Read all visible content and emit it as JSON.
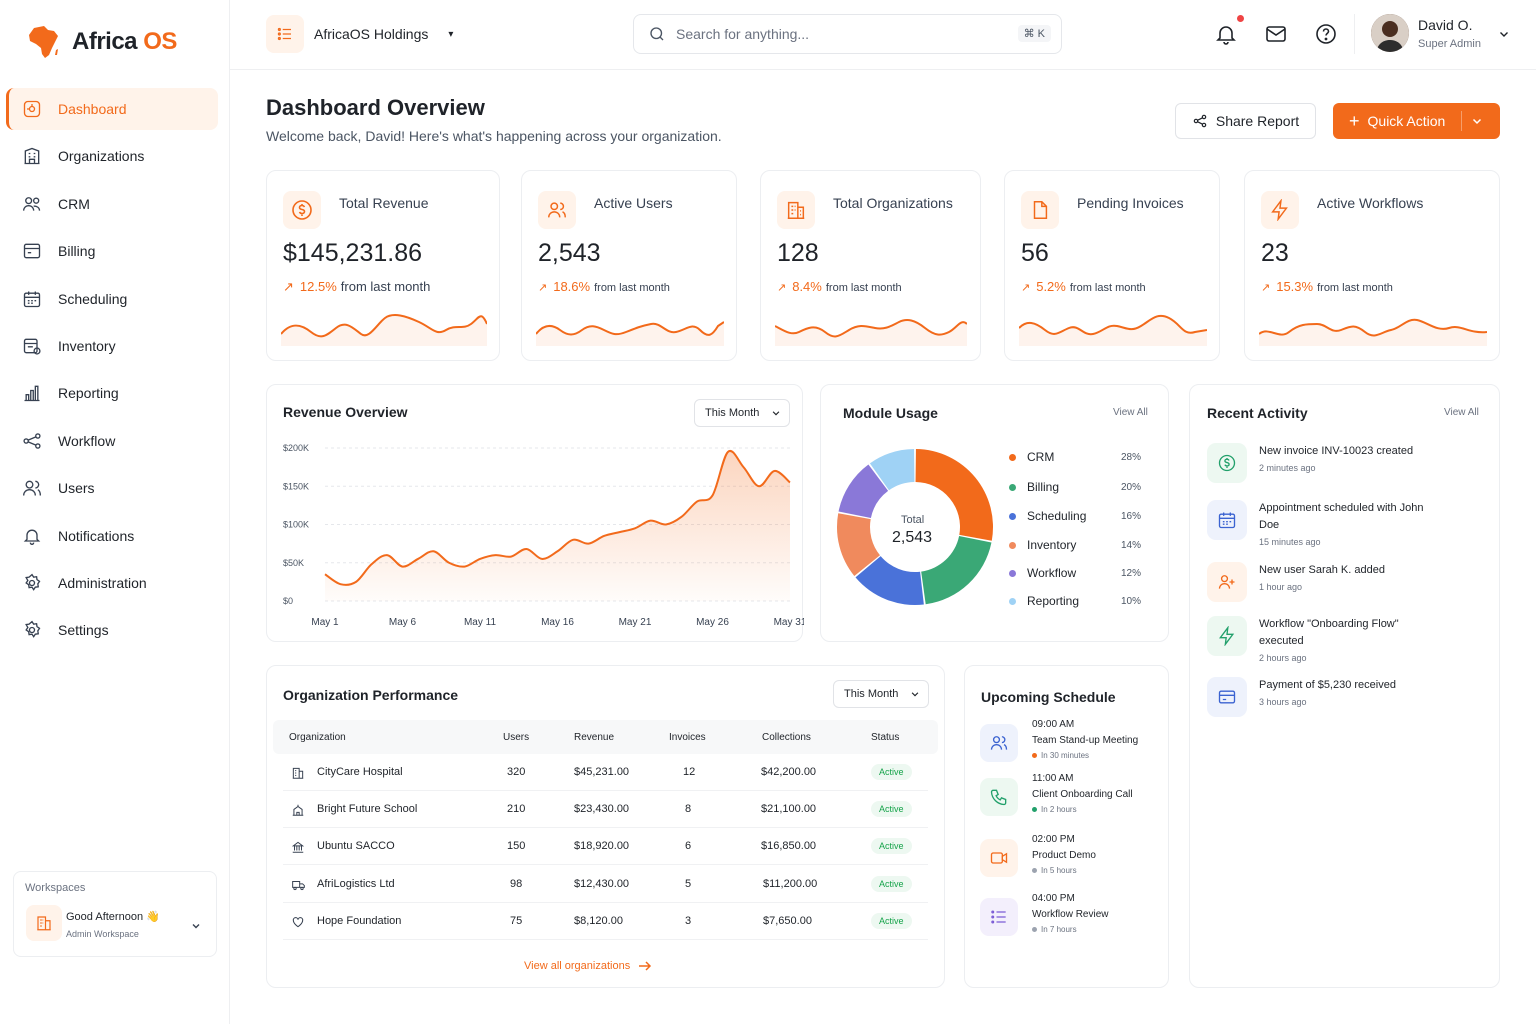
{
  "brand": {
    "name_part1": "Africa",
    "name_part2": "OS",
    "accent": "#f26a1b"
  },
  "sidebar": {
    "items": [
      {
        "label": "Dashboard",
        "icon": "dashboard-icon"
      },
      {
        "label": "Organizations",
        "icon": "building-icon"
      },
      {
        "label": "CRM",
        "icon": "users-icon"
      },
      {
        "label": "Billing",
        "icon": "billing-icon"
      },
      {
        "label": "Scheduling",
        "icon": "calendar-icon"
      },
      {
        "label": "Inventory",
        "icon": "inventory-icon"
      },
      {
        "label": "Reporting",
        "icon": "chart-icon"
      },
      {
        "label": "Workflow",
        "icon": "workflow-icon"
      },
      {
        "label": "Users",
        "icon": "users-icon"
      },
      {
        "label": "Notifications",
        "icon": "bell-icon"
      },
      {
        "label": "Administration",
        "icon": "gear-icon"
      },
      {
        "label": "Settings",
        "icon": "gear-icon"
      }
    ],
    "workspace": {
      "label": "Workspaces",
      "greeting": "Good Afternoon 👋",
      "name": "Admin Workspace"
    }
  },
  "topbar": {
    "org_name": "AfricaOS Holdings",
    "search_placeholder": "Search for anything...",
    "search_shortcut": "⌘ K",
    "user_name": "David O.",
    "user_role": "Super Admin"
  },
  "header": {
    "title": "Dashboard Overview",
    "subtitle": "Welcome back, David! Here's what's happening across your organization.",
    "share_label": "Share Report",
    "quick_label": "Quick Action"
  },
  "kpis": [
    {
      "label": "Total Revenue",
      "value": "$145,231.86",
      "change": "12.5%",
      "suffix": "from last month",
      "icon": "dollar-icon"
    },
    {
      "label": "Active Users",
      "value": "2,543",
      "change": "18.6%",
      "suffix": "from last month",
      "icon": "users-icon"
    },
    {
      "label": "Total Organizations",
      "value": "128",
      "change": "8.4%",
      "suffix": "from last month",
      "icon": "building-icon"
    },
    {
      "label": "Pending Invoices",
      "value": "56",
      "change": "5.2%",
      "suffix": "from last month",
      "icon": "document-icon"
    },
    {
      "label": "Active Workflows",
      "value": "23",
      "change": "15.3%",
      "suffix": "from last month",
      "icon": "lightning-icon"
    }
  ],
  "revenue": {
    "title": "Revenue Overview",
    "period": "This Month"
  },
  "module_usage": {
    "title": "Module Usage",
    "view_all": "View All",
    "total_label": "Total",
    "total_value": "2,543"
  },
  "activity": {
    "title": "Recent Activity",
    "view_all": "View All",
    "items": [
      {
        "text": "New invoice INV-10023 created",
        "time": "2 minutes ago",
        "icon": "dollar-icon"
      },
      {
        "text": "Appointment scheduled with John Doe",
        "time": "15 minutes ago",
        "icon": "calendar-icon"
      },
      {
        "text": "New user Sarah K. added",
        "time": "1 hour ago",
        "icon": "user-add-icon"
      },
      {
        "text": "Workflow \"Onboarding Flow\" executed",
        "time": "2 hours ago",
        "icon": "lightning-icon"
      },
      {
        "text": "Payment of $5,230 received",
        "time": "3 hours ago",
        "icon": "card-icon"
      }
    ]
  },
  "org_perf": {
    "title": "Organization Performance",
    "period": "This Month",
    "columns": [
      "Organization",
      "Users",
      "Revenue",
      "Invoices",
      "Collections",
      "Status"
    ],
    "rows": [
      {
        "name": "CityCare Hospital",
        "users": "320",
        "revenue": "$45,231.00",
        "invoices": "12",
        "collections": "$42,200.00",
        "status": "Active",
        "icon": "building-icon"
      },
      {
        "name": "Bright Future School",
        "users": "210",
        "revenue": "$23,430.00",
        "invoices": "8",
        "collections": "$21,100.00",
        "status": "Active",
        "icon": "school-icon"
      },
      {
        "name": "Ubuntu SACCO",
        "users": "150",
        "revenue": "$18,920.00",
        "invoices": "6",
        "collections": "$16,850.00",
        "status": "Active",
        "icon": "bank-icon"
      },
      {
        "name": "AfriLogistics Ltd",
        "users": "98",
        "revenue": "$12,430.00",
        "invoices": "5",
        "collections": "$11,200.00",
        "status": "Active",
        "icon": "truck-icon"
      },
      {
        "name": "Hope Foundation",
        "users": "75",
        "revenue": "$8,120.00",
        "invoices": "3",
        "collections": "$7,650.00",
        "status": "Active",
        "icon": "heart-icon"
      }
    ],
    "view_all": "View all organizations"
  },
  "schedule": {
    "title": "Upcoming Schedule",
    "items": [
      {
        "time": "09:00 AM",
        "title": "Team Stand-up Meeting",
        "in": "In 30 minutes",
        "icon": "users-icon",
        "dot": "#f26a1b"
      },
      {
        "time": "11:00 AM",
        "title": "Client Onboarding Call",
        "in": "In 2 hours",
        "icon": "phone-icon",
        "dot": "#22a06b"
      },
      {
        "time": "02:00 PM",
        "title": "Product Demo",
        "in": "In 5 hours",
        "icon": "video-icon",
        "dot": "#9ca3af"
      },
      {
        "time": "04:00 PM",
        "title": "Workflow Review",
        "in": "In 7 hours",
        "icon": "list-icon",
        "dot": "#9ca3af"
      }
    ]
  },
  "chart_data": [
    {
      "type": "area",
      "title": "Revenue Overview",
      "x": [
        "May 1",
        "May 2",
        "May 3",
        "May 4",
        "May 5",
        "May 6",
        "May 7",
        "May 8",
        "May 9",
        "May 10",
        "May 11",
        "May 12",
        "May 13",
        "May 14",
        "May 15",
        "May 16",
        "May 17",
        "May 18",
        "May 19",
        "May 20",
        "May 21",
        "May 22",
        "May 23",
        "May 24",
        "May 25",
        "May 26",
        "May 27",
        "May 28",
        "May 29",
        "May 30",
        "May 31"
      ],
      "y": [
        35000,
        22000,
        25000,
        48000,
        60000,
        45000,
        55000,
        65000,
        50000,
        45000,
        55000,
        60000,
        58000,
        68000,
        55000,
        65000,
        80000,
        75000,
        85000,
        90000,
        95000,
        105000,
        100000,
        110000,
        130000,
        138000,
        195000,
        175000,
        150000,
        170000,
        155000
      ],
      "x_tick_labels": [
        "May 1",
        "May 6",
        "May 11",
        "May 16",
        "May 21",
        "May 26",
        "May 31"
      ],
      "y_tick_labels": [
        "$0",
        "$50K",
        "$100K",
        "$150K",
        "$200K"
      ],
      "ylim": [
        0,
        200000
      ],
      "grid": true
    },
    {
      "type": "pie",
      "title": "Module Usage",
      "categories": [
        "CRM",
        "Billing",
        "Scheduling",
        "Inventory",
        "Workflow",
        "Reporting"
      ],
      "values": [
        28,
        20,
        16,
        14,
        12,
        10
      ],
      "labels": [
        "28%",
        "20%",
        "16%",
        "14%",
        "12%",
        "10%"
      ],
      "colors": [
        "#f26a1b",
        "#3aa876",
        "#4a72d9",
        "#f08a5d",
        "#8a78d8",
        "#9fd2f5"
      ]
    }
  ]
}
